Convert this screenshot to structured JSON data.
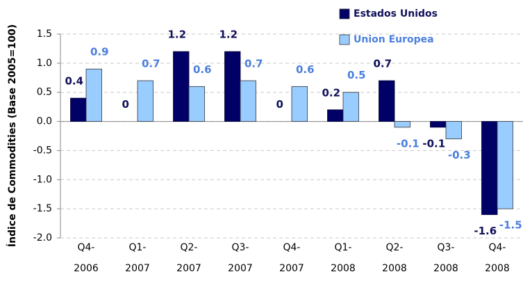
{
  "chart_data": {
    "type": "bar",
    "y_label": "Índice de Commodities  (Base 2005=100)",
    "categories": [
      "Q4-2006",
      "Q1-2007",
      "Q2-2007",
      "Q3-2007",
      "Q4-2007",
      "Q1-2008",
      "Q2-2008",
      "Q3-2008",
      "Q4-2008"
    ],
    "series": [
      {
        "name": "Estados Unidos",
        "color": "#000066",
        "label_color": "#10105a",
        "values": [
          0.4,
          0,
          1.2,
          1.2,
          0,
          0.2,
          0.7,
          -0.1,
          -1.6
        ]
      },
      {
        "name": "Union Europea",
        "color": "#99ccff",
        "label_color": "#4a7fdc",
        "values": [
          0.9,
          0.7,
          0.6,
          0.7,
          0.6,
          0.5,
          -0.1,
          -0.3,
          -1.5
        ]
      }
    ],
    "ylim": [
      -2,
      1.5
    ],
    "yticks": [
      {
        "value": -2,
        "label": "-2.0"
      },
      -1.5,
      {
        "value": -1,
        "label": "-1.0"
      },
      -0.5,
      {
        "value": 0,
        "label": "0.0"
      },
      0.5,
      {
        "value": 1,
        "label": "1.0"
      },
      1.5
    ],
    "grid": true,
    "legend": "top-right"
  }
}
